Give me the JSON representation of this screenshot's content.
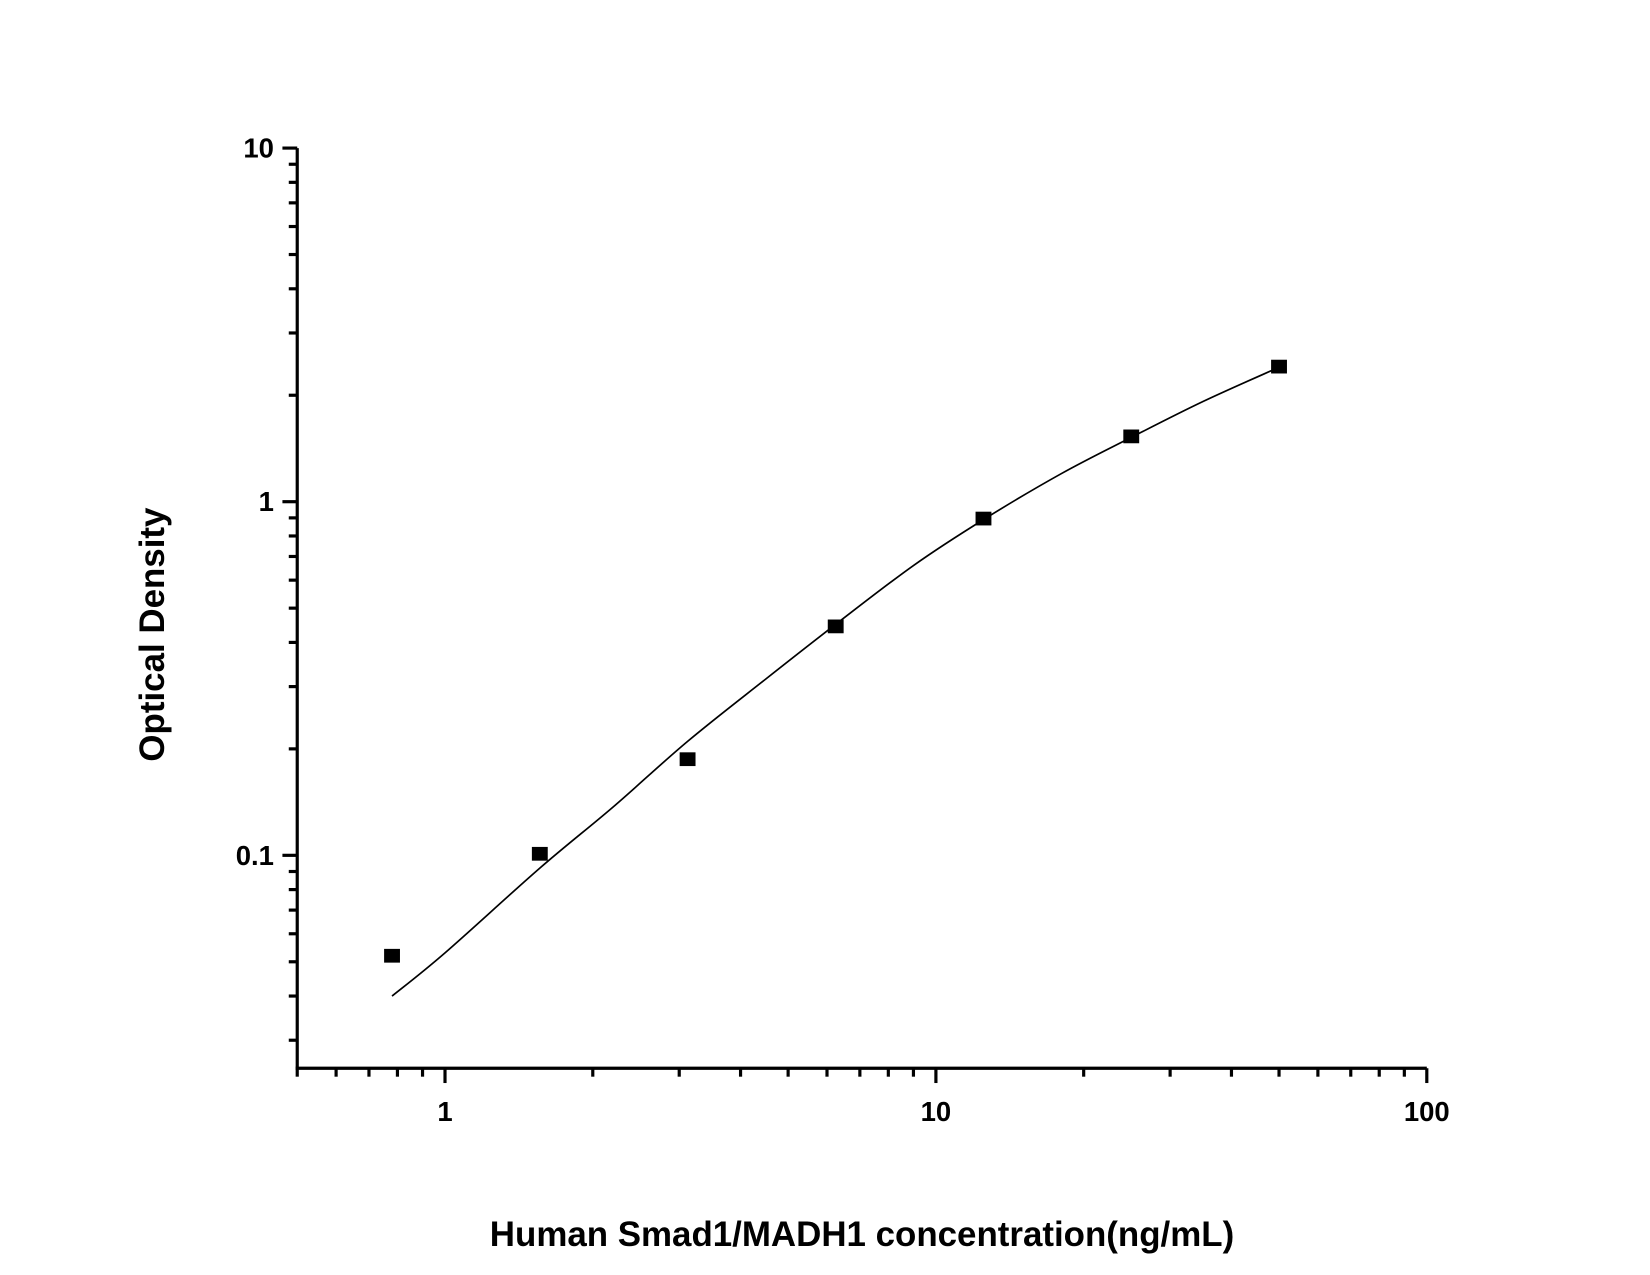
{
  "chart_data": {
    "type": "scatter",
    "title": "",
    "xlabel": "Human Smad1/MADH1 concentration(ng/mL)",
    "ylabel": "Optical Density",
    "x_scale": "log",
    "y_scale": "log",
    "xlim": [
      0.5,
      100
    ],
    "ylim": [
      0.025,
      10
    ],
    "x_ticks": [
      {
        "value": 1,
        "label": "1"
      },
      {
        "value": 10,
        "label": "10"
      },
      {
        "value": 100,
        "label": "100"
      }
    ],
    "y_ticks": [
      {
        "value": 0.1,
        "label": "0.1"
      },
      {
        "value": 1,
        "label": "1"
      },
      {
        "value": 10,
        "label": "10"
      }
    ],
    "grid": false,
    "legend": "none",
    "colors": {
      "points": "#000000",
      "curve": "#000000"
    },
    "series": [
      {
        "kind": "points",
        "marker": "square",
        "x": [
          0.78,
          1.56,
          3.12,
          6.25,
          12.5,
          25,
          50
        ],
        "y": [
          0.052,
          0.101,
          0.187,
          0.444,
          0.896,
          1.53,
          2.41
        ]
      },
      {
        "kind": "fit-curve",
        "x": [
          0.78,
          1.0,
          1.56,
          2.2,
          3.12,
          4.5,
          6.25,
          9.0,
          12.5,
          18,
          25,
          35,
          50
        ],
        "y": [
          0.04,
          0.053,
          0.092,
          0.137,
          0.21,
          0.315,
          0.45,
          0.66,
          0.89,
          1.2,
          1.52,
          1.92,
          2.4
        ]
      }
    ]
  }
}
